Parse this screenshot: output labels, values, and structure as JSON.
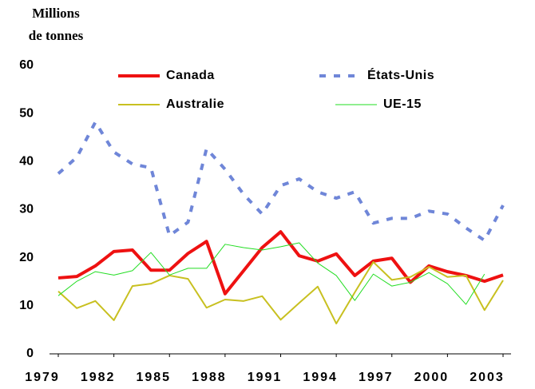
{
  "chart_data": {
    "type": "line",
    "y_label": [
      "Millions",
      "de tonnes"
    ],
    "x": [
      1979,
      1980,
      1981,
      1982,
      1983,
      1984,
      1985,
      1986,
      1987,
      1988,
      1989,
      1990,
      1991,
      1992,
      1993,
      1994,
      1995,
      1996,
      1997,
      1998,
      1999,
      2000,
      2001,
      2002,
      2003
    ],
    "xlim": [
      1979,
      2003
    ],
    "xticks": [
      1979,
      1982,
      1985,
      1988,
      1991,
      1994,
      1997,
      2000,
      2003
    ],
    "ylim": [
      0,
      60
    ],
    "yticks": [
      0,
      10,
      20,
      30,
      40,
      50,
      60
    ],
    "grid": false,
    "series": [
      {
        "name": "Canada",
        "color": "#ee1111",
        "width": 4,
        "dashed": false,
        "values": [
          15.8,
          16.1,
          18.3,
          21.3,
          21.6,
          17.4,
          17.4,
          20.9,
          23.4,
          12.5,
          17.3,
          22.1,
          25.4,
          20.4,
          19.3,
          20.8,
          16.3,
          19.3,
          19.9,
          14.9,
          18.3,
          17.1,
          16.3,
          15.1,
          16.4
        ]
      },
      {
        "name": "États-Unis",
        "color": "#6f86d8",
        "width": 4,
        "dashed": true,
        "values": [
          37.5,
          40.9,
          48.2,
          42,
          39.5,
          38.7,
          24.6,
          27.4,
          42.7,
          38.4,
          33.2,
          29.1,
          35.0,
          36.4,
          33.7,
          32.4,
          33.7,
          27.2,
          28.2,
          28.2,
          29.7,
          29.1,
          26.2,
          23.6,
          30.9
        ]
      },
      {
        "name": "Australie",
        "color": "#c8c020",
        "width": 2,
        "dashed": false,
        "values": [
          13,
          9.5,
          11,
          7,
          14.1,
          14.6,
          16.3,
          15.6,
          9.6,
          11.3,
          11,
          12,
          7.1,
          10.6,
          14,
          6.3,
          12.8,
          19.1,
          15.4,
          16,
          18.1,
          16,
          16.3,
          9.1,
          15.3
        ]
      },
      {
        "name": "UE-15",
        "color": "#22dd22",
        "width": 1,
        "dashed": false,
        "values": [
          12.1,
          15.1,
          17.1,
          16.4,
          17.3,
          21.1,
          16.4,
          17.8,
          17.8,
          22.8,
          22.1,
          21.6,
          22.3,
          23.1,
          18.9,
          16.3,
          11.1,
          16.6,
          14.1,
          14.9,
          16.9,
          14.6,
          10.3,
          16.6,
          null
        ]
      }
    ]
  }
}
